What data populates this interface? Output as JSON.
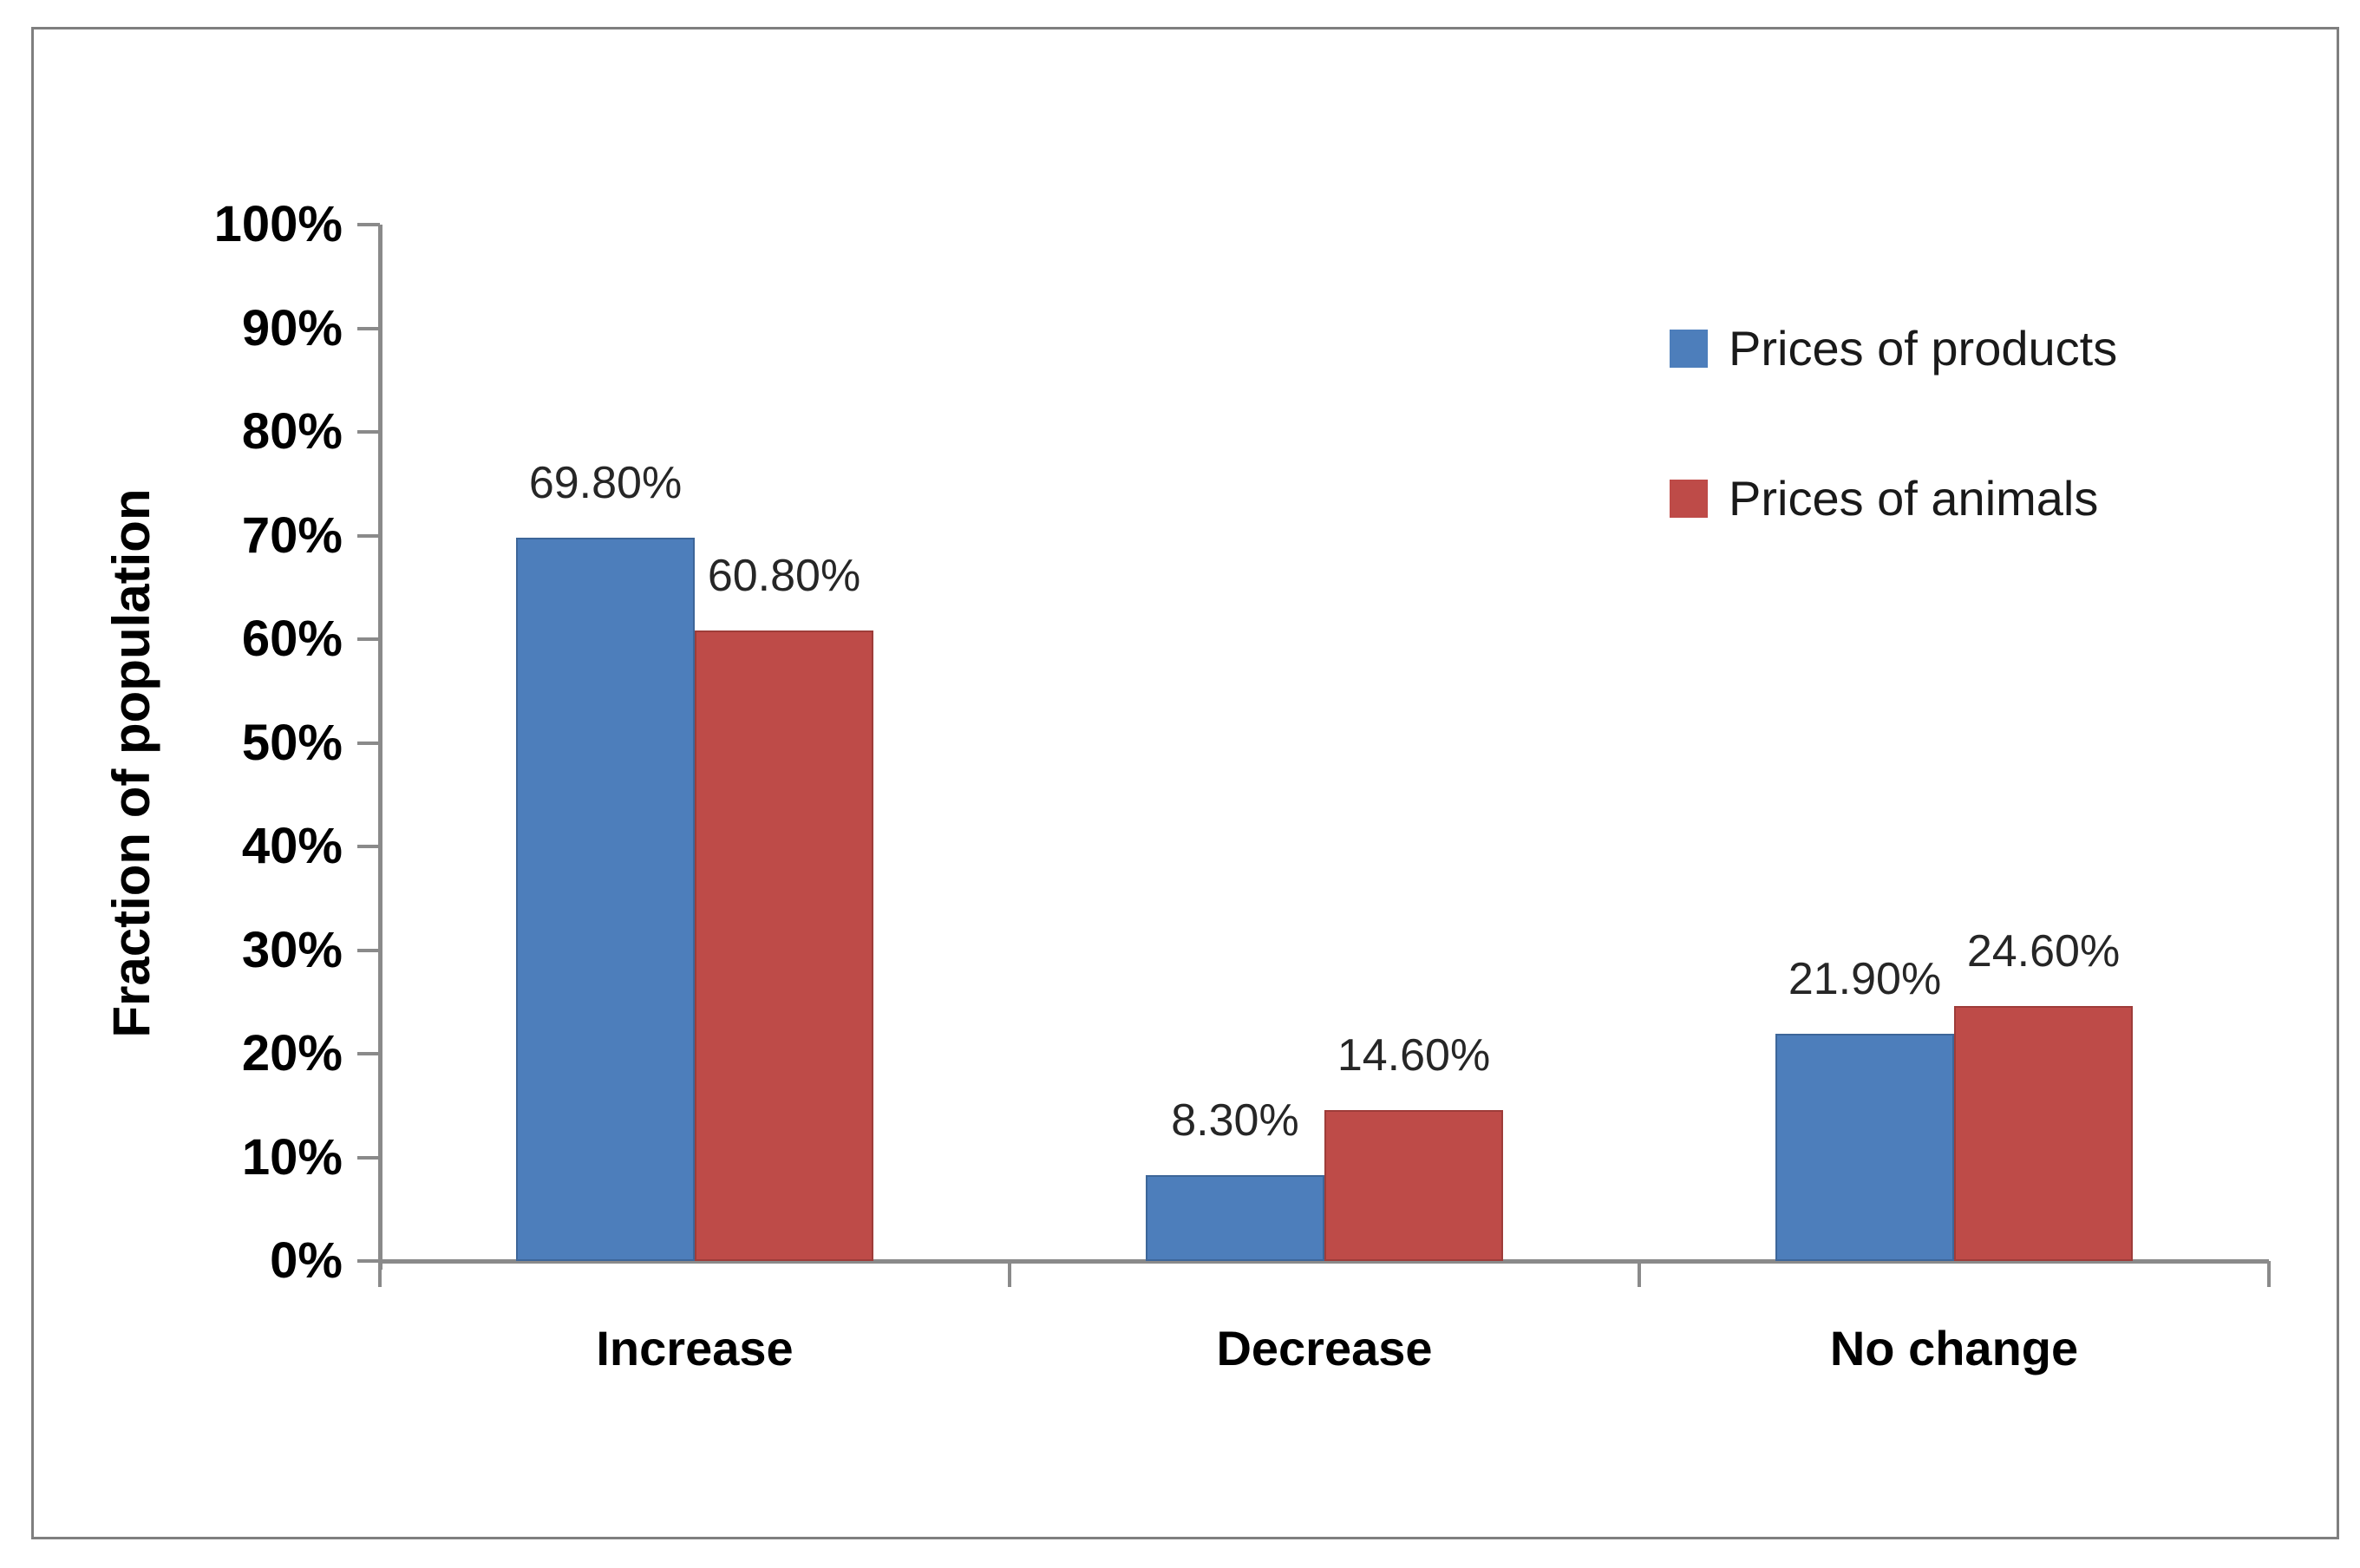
{
  "figure": {
    "background": "#FFFFFF",
    "border_color": "#7F7F7F"
  },
  "chart_data": {
    "type": "bar",
    "title": "",
    "categories": [
      "Increase",
      "Decrease",
      "No change"
    ],
    "series": [
      {
        "name": "Prices of products",
        "color": "#4D7EBB",
        "edge_color": "#3D6699",
        "values": [
          69.8,
          8.3,
          21.9
        ],
        "value_labels": [
          "69.80%",
          "8.30%",
          "21.90%"
        ]
      },
      {
        "name": "Prices of animals",
        "color": "#BE4B48",
        "edge_color": "#9E3C39",
        "values": [
          60.8,
          14.6,
          24.6
        ],
        "value_labels": [
          "60.80%",
          "14.60%",
          "24.60%"
        ]
      }
    ],
    "xlabel": "",
    "ylabel": "Fraction of population",
    "ylim": [
      0,
      100
    ],
    "ytick_step": 10,
    "ytick_labels": [
      "0%",
      "10%",
      "20%",
      "30%",
      "40%",
      "50%",
      "60%",
      "70%",
      "80%",
      "90%",
      "100%"
    ],
    "grid": false,
    "legend_position": "upper-right",
    "axis_color": "#8A8A8A"
  }
}
